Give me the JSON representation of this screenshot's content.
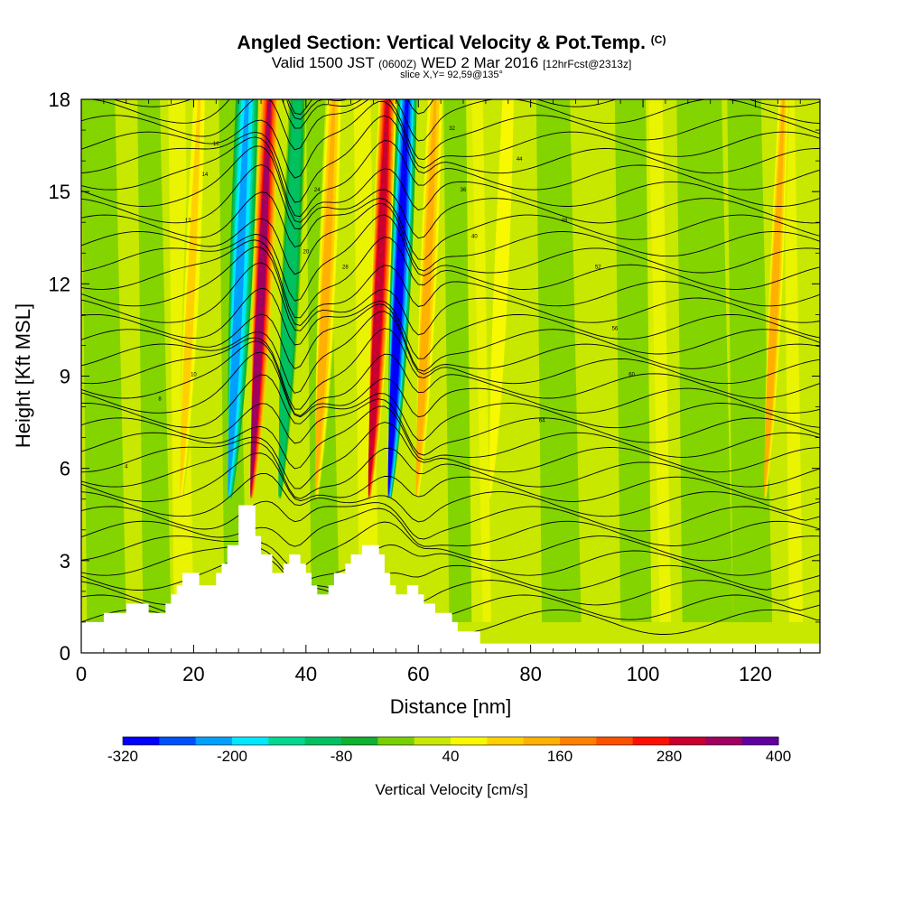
{
  "header": {
    "title": "Angled Section: Vertical Velocity & Pot.Temp.",
    "title_mark": "(C)",
    "valid_prefix": "Valid 1500 JST",
    "valid_zulu": "(0600Z)",
    "valid_date": "WED 2 Mar 2016",
    "valid_fcst": "[12hrFcst@2313z]",
    "slice": "slice X,Y= 92,59@135°"
  },
  "chart_data": {
    "type": "heatmap",
    "xlabel": "Distance [nm]",
    "ylabel": "Height [Kft MSL]",
    "xlim": [
      0,
      131.5
    ],
    "ylim": [
      0,
      18
    ],
    "xticks": [
      0,
      20,
      40,
      60,
      80,
      100,
      120
    ],
    "yticks": [
      0,
      3,
      6,
      9,
      12,
      15,
      18
    ],
    "updraft_bands": [
      {
        "x": 21,
        "w": 3,
        "value": 80
      },
      {
        "x": 33.5,
        "w": 3.2,
        "value": 320
      },
      {
        "x": 45,
        "w": 3,
        "value": 130
      },
      {
        "x": 54.5,
        "w": 3,
        "value": 300
      },
      {
        "x": 63,
        "w": 3,
        "value": 120
      },
      {
        "x": 76,
        "w": 4,
        "value": 60
      },
      {
        "x": 125,
        "w": 2,
        "value": 120
      }
    ],
    "downdraft_bands": [
      {
        "x": 29.5,
        "w": 4,
        "value": -230
      },
      {
        "x": 38.5,
        "w": 3,
        "value": -120
      },
      {
        "x": 58,
        "w": 3.5,
        "value": -300
      }
    ],
    "terrain": [
      [
        0,
        1
      ],
      [
        4,
        1
      ],
      [
        4,
        1.3
      ],
      [
        8,
        1.3
      ],
      [
        8,
        1.6
      ],
      [
        12,
        1.6
      ],
      [
        12,
        1.3
      ],
      [
        15,
        1.3
      ],
      [
        15,
        1.6
      ],
      [
        16,
        1.6
      ],
      [
        16,
        1.9
      ],
      [
        17,
        1.9
      ],
      [
        17,
        2.2
      ],
      [
        18,
        2.2
      ],
      [
        18,
        2.6
      ],
      [
        21,
        2.6
      ],
      [
        21,
        2.2
      ],
      [
        24,
        2.2
      ],
      [
        24,
        2.6
      ],
      [
        25,
        2.6
      ],
      [
        25,
        2.9
      ],
      [
        26,
        2.9
      ],
      [
        26,
        3.5
      ],
      [
        28,
        3.5
      ],
      [
        28,
        4.8
      ],
      [
        31,
        4.8
      ],
      [
        31,
        3.8
      ],
      [
        32,
        3.8
      ],
      [
        32,
        3.2
      ],
      [
        34,
        3.2
      ],
      [
        34,
        2.6
      ],
      [
        36,
        2.6
      ],
      [
        36,
        2.9
      ],
      [
        37,
        2.9
      ],
      [
        37,
        3.2
      ],
      [
        39,
        3.2
      ],
      [
        39,
        2.9
      ],
      [
        40,
        2.9
      ],
      [
        40,
        2.6
      ],
      [
        41,
        2.6
      ],
      [
        41,
        2.2
      ],
      [
        42,
        2.2
      ],
      [
        42,
        1.9
      ],
      [
        44,
        1.9
      ],
      [
        44,
        2.2
      ],
      [
        45,
        2.2
      ],
      [
        45,
        2.6
      ],
      [
        47,
        2.6
      ],
      [
        47,
        2.9
      ],
      [
        48,
        2.9
      ],
      [
        48,
        3.2
      ],
      [
        50,
        3.2
      ],
      [
        50,
        3.5
      ],
      [
        53,
        3.5
      ],
      [
        53,
        3.2
      ],
      [
        54,
        3.2
      ],
      [
        54,
        2.6
      ],
      [
        55,
        2.6
      ],
      [
        55,
        2.2
      ],
      [
        56,
        2.2
      ],
      [
        56,
        1.9
      ],
      [
        58,
        1.9
      ],
      [
        58,
        2.2
      ],
      [
        60,
        2.2
      ],
      [
        60,
        1.9
      ],
      [
        61,
        1.9
      ],
      [
        61,
        1.6
      ],
      [
        63,
        1.6
      ],
      [
        63,
        1.3
      ],
      [
        66,
        1.3
      ],
      [
        66,
        1
      ],
      [
        67,
        1
      ],
      [
        67,
        0.7
      ],
      [
        71,
        0.7
      ],
      [
        71,
        0.3
      ],
      [
        131.5,
        0.3
      ]
    ],
    "contour_labels": [
      "4",
      "8",
      "10",
      "12",
      "14",
      "16",
      "20",
      "24",
      "28",
      "32",
      "36",
      "40",
      "44",
      "48",
      "52",
      "56",
      "60",
      "64"
    ],
    "colorbar": {
      "label": "Vertical Velocity [cm/s]",
      "tick_labels": [
        "-320",
        "-200",
        "-80",
        "40",
        "160",
        "280",
        "400"
      ],
      "colors": [
        "#0000ff",
        "#0050ff",
        "#00a0ff",
        "#00e8ff",
        "#00d890",
        "#00c060",
        "#10b030",
        "#78d000",
        "#c8e800",
        "#f8f800",
        "#ffd000",
        "#ffb000",
        "#ff8000",
        "#ff5000",
        "#ff1000",
        "#c80030",
        "#a00060",
        "#6000a0"
      ]
    }
  }
}
